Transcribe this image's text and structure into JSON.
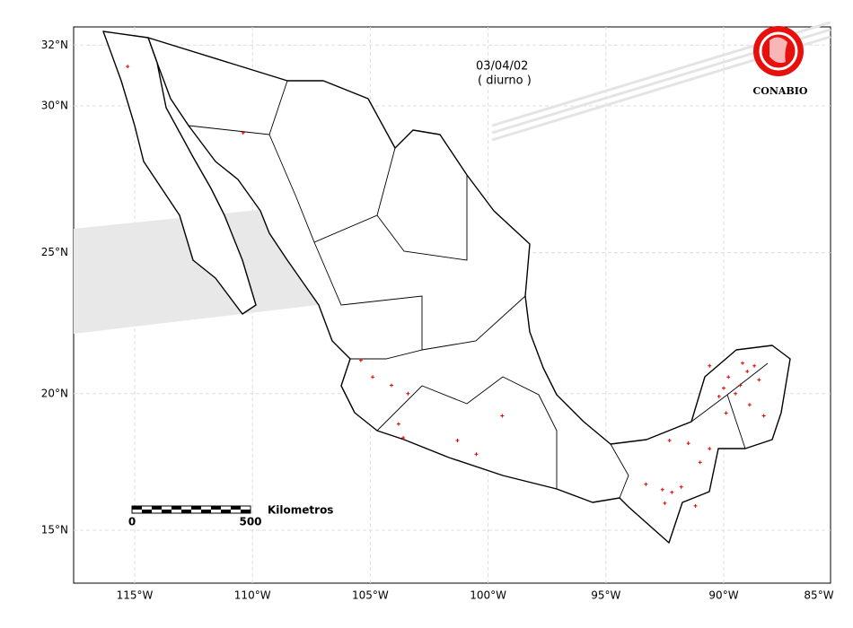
{
  "map": {
    "date": "03/04/02",
    "period": "( diurno )",
    "logo": "CONABIO",
    "scale": {
      "label": "Kilometros",
      "start": "0",
      "end": "500"
    },
    "lat_ticks": [
      {
        "value": 32,
        "label": "32°N"
      },
      {
        "value": 30,
        "label": "30°N"
      },
      {
        "value": 25,
        "label": "25°N"
      },
      {
        "value": 20,
        "label": "20°N"
      },
      {
        "value": 15,
        "label": "15°N"
      }
    ],
    "lon_ticks": [
      {
        "value": -115,
        "label": "115°W"
      },
      {
        "value": -110,
        "label": "110°W"
      },
      {
        "value": -105,
        "label": "105°W"
      },
      {
        "value": -100,
        "label": "100°W"
      },
      {
        "value": -95,
        "label": "95°W"
      },
      {
        "value": -90,
        "label": "90°W"
      },
      {
        "value": -85,
        "label": "85°W"
      }
    ],
    "fires": [
      [
        -115.3,
        31.3
      ],
      [
        -110.4,
        29.1
      ],
      [
        -105.4,
        21.2
      ],
      [
        -104.9,
        20.6
      ],
      [
        -104.1,
        20.3
      ],
      [
        -103.4,
        20.0
      ],
      [
        -103.8,
        18.9
      ],
      [
        -103.6,
        18.4
      ],
      [
        -101.3,
        18.3
      ],
      [
        -100.5,
        17.8
      ],
      [
        -99.4,
        19.2
      ],
      [
        -90.6,
        21.0
      ],
      [
        -89.8,
        20.6
      ],
      [
        -89.2,
        21.1
      ],
      [
        -89.0,
        20.8
      ],
      [
        -88.7,
        21.0
      ],
      [
        -88.5,
        20.5
      ],
      [
        -89.5,
        20.0
      ],
      [
        -90.2,
        19.9
      ],
      [
        -88.9,
        19.6
      ],
      [
        -89.9,
        19.3
      ],
      [
        -88.3,
        19.2
      ],
      [
        -90.0,
        20.2
      ],
      [
        -89.3,
        20.3
      ],
      [
        -93.3,
        16.7
      ],
      [
        -92.6,
        16.5
      ],
      [
        -92.2,
        16.4
      ],
      [
        -91.8,
        16.6
      ],
      [
        -92.5,
        16.0
      ],
      [
        -91.2,
        15.9
      ],
      [
        -91.0,
        17.5
      ],
      [
        -91.5,
        18.2
      ],
      [
        -92.3,
        18.3
      ],
      [
        -90.6,
        18.0
      ]
    ]
  }
}
